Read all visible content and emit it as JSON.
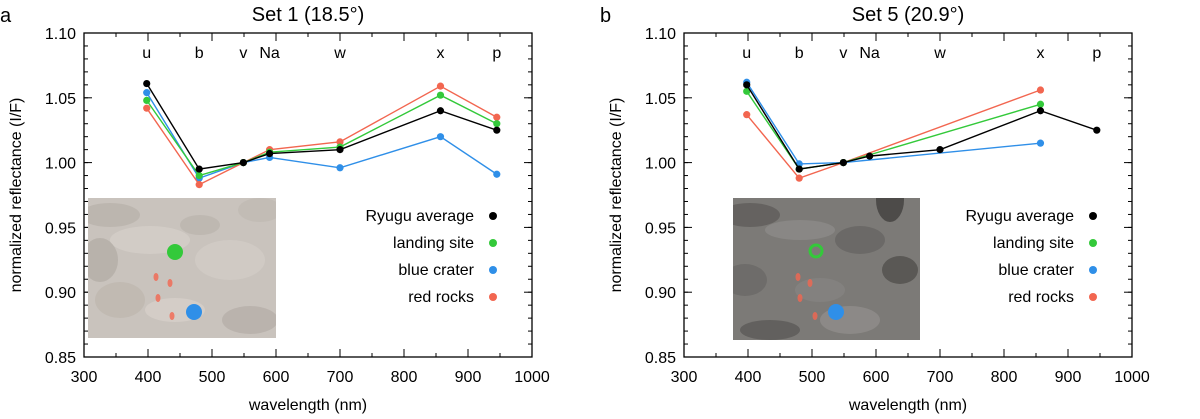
{
  "chart_data": [
    {
      "panel_label": "a",
      "type": "line",
      "title": "Set 1 (18.5°)",
      "xlabel": "wavelength (nm)",
      "ylabel": "normalized reflectance (I/F)",
      "xlim": [
        300,
        1000
      ],
      "ylim": [
        0.85,
        1.1
      ],
      "xticks": [
        300,
        400,
        500,
        600,
        700,
        800,
        900,
        1000
      ],
      "yticks": [
        "0.85",
        "0.90",
        "0.95",
        "1.00",
        "1.05",
        "1.10"
      ],
      "band_labels": [
        {
          "label": "u",
          "x": 398
        },
        {
          "label": "b",
          "x": 480
        },
        {
          "label": "v",
          "x": 549
        },
        {
          "label": "Na",
          "x": 590
        },
        {
          "label": "w",
          "x": 700
        },
        {
          "label": "x",
          "x": 857
        },
        {
          "label": "p",
          "x": 945
        }
      ],
      "series": [
        {
          "name": "Ryugu average",
          "color": "#000000",
          "x": [
            398,
            480,
            549,
            590,
            700,
            857,
            945
          ],
          "y": [
            1.061,
            0.995,
            1.0,
            1.007,
            1.01,
            1.04,
            1.025
          ]
        },
        {
          "name": "landing site",
          "color": "#33c93a",
          "x": [
            398,
            480,
            549,
            590,
            700,
            857,
            945
          ],
          "y": [
            1.048,
            0.99,
            1.0,
            1.008,
            1.012,
            1.052,
            1.03
          ]
        },
        {
          "name": "blue crater",
          "color": "#2f8fe8",
          "x": [
            398,
            480,
            549,
            590,
            700,
            857,
            945
          ],
          "y": [
            1.054,
            0.988,
            1.0,
            1.004,
            0.996,
            1.02,
            0.991
          ]
        },
        {
          "name": "red rocks",
          "color": "#f26650",
          "x": [
            398,
            480,
            549,
            590,
            700,
            857,
            945
          ],
          "y": [
            1.042,
            0.983,
            1.0,
            1.01,
            1.016,
            1.059,
            1.035
          ]
        }
      ],
      "legend_position": "right",
      "inset": {
        "description": "light surface image",
        "markers": [
          "landing site",
          "blue crater",
          "red rocks"
        ]
      }
    },
    {
      "panel_label": "b",
      "type": "line",
      "title": "Set 5 (20.9°)",
      "xlabel": "wavelength (nm)",
      "ylabel": "normalized reflectance (I/F)",
      "xlim": [
        300,
        1000
      ],
      "ylim": [
        0.85,
        1.1
      ],
      "xticks": [
        300,
        400,
        500,
        600,
        700,
        800,
        900,
        1000
      ],
      "yticks": [
        "0.85",
        "0.90",
        "0.95",
        "1.00",
        "1.05",
        "1.10"
      ],
      "band_labels": [
        {
          "label": "u",
          "x": 398
        },
        {
          "label": "b",
          "x": 480
        },
        {
          "label": "v",
          "x": 549
        },
        {
          "label": "Na",
          "x": 590
        },
        {
          "label": "w",
          "x": 700
        },
        {
          "label": "x",
          "x": 857
        },
        {
          "label": "p",
          "x": 945
        }
      ],
      "series": [
        {
          "name": "Ryugu average",
          "color": "#000000",
          "x": [
            398,
            480,
            549,
            590,
            700,
            857,
            945
          ],
          "y": [
            1.06,
            0.995,
            1.0,
            1.005,
            1.01,
            1.04,
            1.025
          ]
        },
        {
          "name": "landing site",
          "color": "#33c93a",
          "x": [
            398,
            480,
            549,
            857
          ],
          "y": [
            1.055,
            0.995,
            1.0,
            1.045
          ]
        },
        {
          "name": "blue crater",
          "color": "#2f8fe8",
          "x": [
            398,
            480,
            549,
            857
          ],
          "y": [
            1.062,
            0.999,
            1.0,
            1.015
          ]
        },
        {
          "name": "red rocks",
          "color": "#f26650",
          "x": [
            398,
            480,
            549,
            857
          ],
          "y": [
            1.037,
            0.988,
            1.0,
            1.056
          ]
        }
      ],
      "legend_position": "right",
      "inset": {
        "description": "dark surface image",
        "markers": [
          "landing site",
          "blue crater",
          "red rocks"
        ]
      }
    }
  ]
}
